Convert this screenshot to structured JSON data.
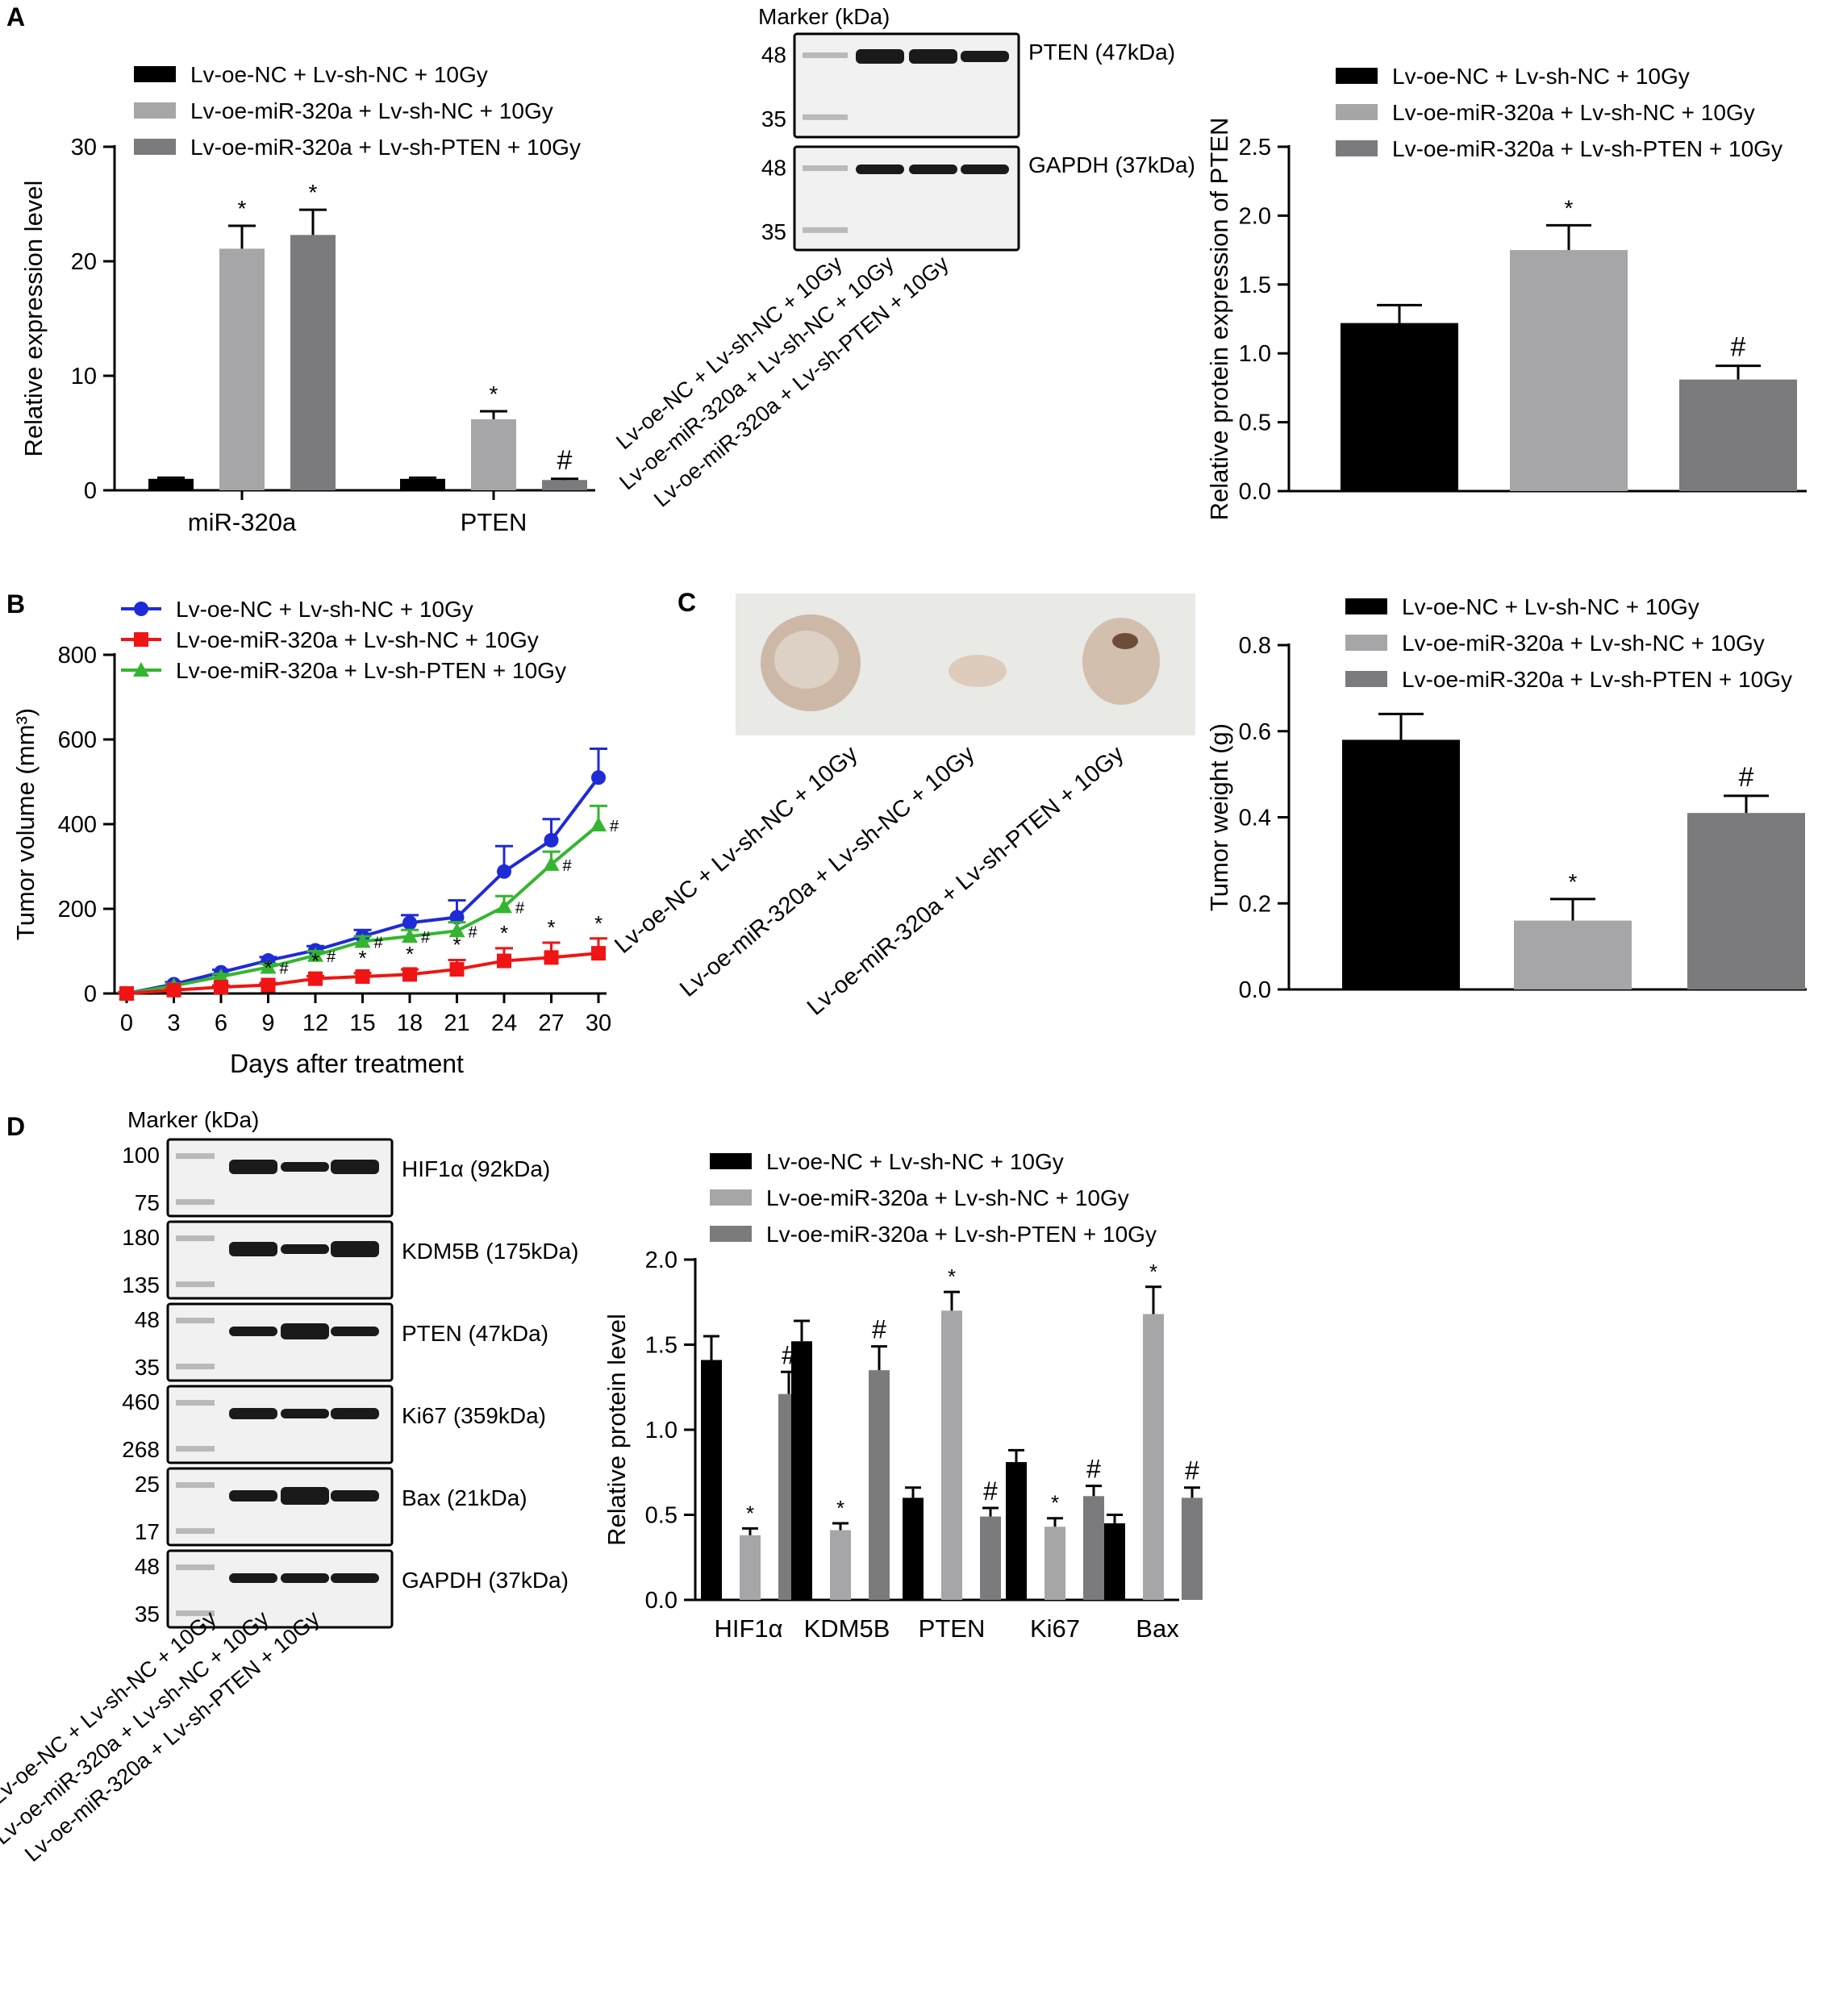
{
  "colors": {
    "black": "#000000",
    "light_gray": "#a6a6a8",
    "dark_gray": "#7b7b7d",
    "blue": "#1f2bd6",
    "red": "#f01414",
    "green": "#34b52f"
  },
  "panels": {
    "A": "A",
    "B": "B",
    "C": "C",
    "D": "D"
  },
  "groups": [
    "Lv-oe-NC + Lv-sh-NC + 10Gy",
    "Lv-oe-miR-320a + Lv-sh-NC + 10Gy",
    "Lv-oe-miR-320a + Lv-sh-PTEN + 10Gy"
  ],
  "blotA": {
    "marker": "Marker (kDa)",
    "rows": [
      {
        "label": "PTEN (47kDa)",
        "m1": "48",
        "m2": "35"
      },
      {
        "label": "GAPDH (37kDa)",
        "m1": "48",
        "m2": "35"
      }
    ]
  },
  "blotD": {
    "marker": "Marker (kDa)",
    "rows": [
      {
        "label": "HIF1α (92kDa)",
        "m1": "100",
        "m2": "75"
      },
      {
        "label": "KDM5B (175kDa)",
        "m1": "180",
        "m2": "135"
      },
      {
        "label": "PTEN (47kDa)",
        "m1": "48",
        "m2": "35"
      },
      {
        "label": "Ki67 (359kDa)",
        "m1": "460",
        "m2": "268"
      },
      {
        "label": "Bax (21kDa)",
        "m1": "25",
        "m2": "17"
      },
      {
        "label": "GAPDH (37kDa)",
        "m1": "48",
        "m2": "35"
      }
    ]
  },
  "photoC": {
    "alt": "tumor-photo"
  },
  "chart_data": [
    {
      "id": "A1",
      "type": "bar",
      "title": "",
      "categories": [
        "miR-320a",
        "PTEN"
      ],
      "xlabel": "",
      "ylabel": "Relative expression level",
      "ylim": [
        0,
        30
      ],
      "yticks": [
        "0",
        "10",
        "20",
        "30"
      ],
      "series": [
        {
          "name": "Lv-oe-NC + Lv-sh-NC + 10Gy",
          "values": [
            1.0,
            1.0
          ],
          "errors": [
            0.1,
            0.1
          ],
          "marks": [
            "",
            ""
          ]
        },
        {
          "name": "Lv-oe-miR-320a + Lv-sh-NC + 10Gy",
          "values": [
            21.1,
            6.2
          ],
          "errors": [
            2.0,
            0.7
          ],
          "marks": [
            "*",
            "*"
          ]
        },
        {
          "name": "Lv-oe-miR-320a + Lv-sh-PTEN + 10Gy",
          "values": [
            22.3,
            0.9
          ],
          "errors": [
            2.2,
            0.1
          ],
          "marks": [
            "*",
            "#"
          ]
        }
      ],
      "legend": "top-left"
    },
    {
      "id": "A2",
      "type": "bar",
      "title": "",
      "categories": [
        "Lv-oe-NC + Lv-sh-NC + 10Gy",
        "Lv-oe-miR-320a + Lv-sh-NC + 10Gy",
        "Lv-oe-miR-320a + Lv-sh-PTEN + 10Gy"
      ],
      "xlabel": "",
      "ylabel": "Relative protein expression of PTEN",
      "ylim": [
        0,
        2.5
      ],
      "yticks": [
        "0.0",
        "0.5",
        "1.0",
        "1.5",
        "2.0",
        "2.5"
      ],
      "values": [
        1.22,
        1.75,
        0.81
      ],
      "errors": [
        0.13,
        0.18,
        0.1
      ],
      "marks": [
        "",
        "*",
        "#"
      ],
      "legend": "top"
    },
    {
      "id": "B",
      "type": "line",
      "title": "",
      "x": [
        0,
        3,
        6,
        9,
        12,
        15,
        18,
        21,
        24,
        27,
        30
      ],
      "xticks": [
        "0",
        "3",
        "6",
        "9",
        "12",
        "15",
        "18",
        "21",
        "24",
        "27",
        "30"
      ],
      "xlabel": "Days after treatment",
      "ylabel": "Tumor volume (mm³)",
      "ylim": [
        0,
        800
      ],
      "yticks": [
        "0",
        "200",
        "400",
        "600",
        "800"
      ],
      "series": [
        {
          "name": "Lv-oe-NC + Lv-sh-NC + 10Gy",
          "values": [
            0,
            22,
            50,
            78,
            102,
            135,
            167,
            180,
            288,
            362,
            510
          ],
          "errors": [
            3,
            5,
            6,
            8,
            10,
            15,
            18,
            40,
            60,
            50,
            68
          ],
          "marks": [
            "",
            "",
            "",
            "",
            "",
            "",
            "",
            "",
            "",
            "",
            ""
          ]
        },
        {
          "name": "Lv-oe-miR-320a + Lv-sh-NC + 10Gy",
          "values": [
            0,
            8,
            15,
            20,
            35,
            40,
            45,
            57,
            77,
            85,
            95
          ],
          "errors": [
            2,
            3,
            4,
            5,
            6,
            8,
            12,
            22,
            30,
            35,
            35
          ],
          "marks": [
            "",
            "",
            "",
            "*",
            "*",
            "*",
            "*",
            "*",
            "*",
            "*",
            "*"
          ]
        },
        {
          "name": "Lv-oe-miR-320a + Lv-sh-PTEN + 10Gy",
          "values": [
            0,
            18,
            40,
            62,
            90,
            123,
            135,
            148,
            205,
            305,
            398
          ],
          "errors": [
            3,
            5,
            6,
            8,
            10,
            12,
            15,
            20,
            25,
            30,
            45
          ],
          "marks": [
            "",
            "",
            "",
            "#",
            "#",
            "#",
            "#",
            "#",
            "#",
            "#",
            "#"
          ]
        }
      ],
      "legend": "top-left"
    },
    {
      "id": "C",
      "type": "bar",
      "title": "",
      "categories": [
        "Lv-oe-NC + Lv-sh-NC + 10Gy",
        "Lv-oe-miR-320a + Lv-sh-NC + 10Gy",
        "Lv-oe-miR-320a + Lv-sh-PTEN + 10Gy"
      ],
      "xlabel": "",
      "ylabel": "Tumor weight (g)",
      "ylim": [
        0,
        0.8
      ],
      "yticks": [
        "0.0",
        "0.2",
        "0.4",
        "0.6",
        "0.8"
      ],
      "values": [
        0.58,
        0.16,
        0.41
      ],
      "errors": [
        0.06,
        0.05,
        0.04
      ],
      "marks": [
        "",
        "*",
        "#"
      ],
      "legend": "top"
    },
    {
      "id": "D",
      "type": "bar",
      "title": "",
      "categories": [
        "HIF1α",
        "KDM5B",
        "PTEN",
        "Ki67",
        "Bax"
      ],
      "xlabel": "",
      "ylabel": "Relative protein level",
      "ylim": [
        0,
        2.0
      ],
      "yticks": [
        "0.0",
        "0.5",
        "1.0",
        "1.5",
        "2.0"
      ],
      "series": [
        {
          "name": "Lv-oe-NC + Lv-sh-NC + 10Gy",
          "values": [
            1.41,
            1.52,
            0.6,
            0.81,
            0.45
          ],
          "errors": [
            0.14,
            0.12,
            0.06,
            0.07,
            0.05
          ],
          "marks": [
            "",
            "",
            "",
            "",
            ""
          ]
        },
        {
          "name": "Lv-oe-miR-320a + Lv-sh-NC + 10Gy",
          "values": [
            0.38,
            0.41,
            1.7,
            0.43,
            1.68
          ],
          "errors": [
            0.04,
            0.04,
            0.11,
            0.05,
            0.16
          ],
          "marks": [
            "*",
            "*",
            "*",
            "*",
            "*"
          ]
        },
        {
          "name": "Lv-oe-miR-320a + Lv-sh-PTEN + 10Gy",
          "values": [
            1.21,
            1.35,
            0.49,
            0.61,
            0.6
          ],
          "errors": [
            0.13,
            0.14,
            0.05,
            0.06,
            0.06
          ],
          "marks": [
            "#",
            "#",
            "#",
            "#",
            "#"
          ]
        }
      ],
      "legend": "top-left"
    }
  ]
}
